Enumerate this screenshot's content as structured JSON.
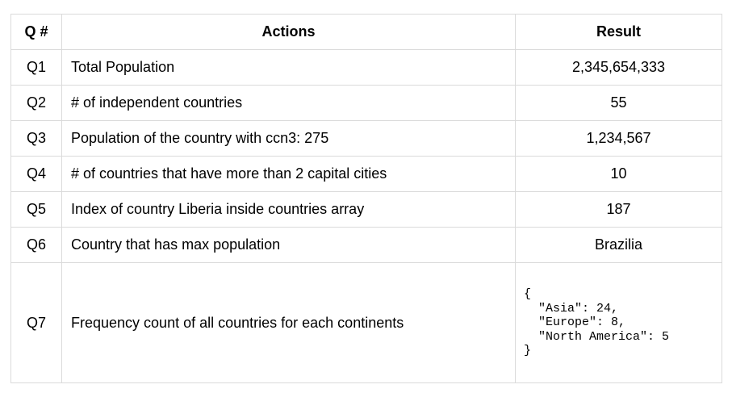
{
  "table": {
    "headers": {
      "q": "Q #",
      "actions": "Actions",
      "result": "Result"
    },
    "rows": [
      {
        "q": "Q1",
        "action": "Total Population",
        "result": "2,345,654,333"
      },
      {
        "q": "Q2",
        "action": "# of independent countries",
        "result": "55"
      },
      {
        "q": "Q3",
        "action": "Population of the country with ccn3: 275",
        "result": "1,234,567"
      },
      {
        "q": "Q4",
        "action": "# of countries that have more than 2 capital cities",
        "result": "10"
      },
      {
        "q": "Q5",
        "action": "Index of country Liberia inside countries array",
        "result": "187"
      },
      {
        "q": "Q6",
        "action": "Country that has max population",
        "result": "Brazilia"
      },
      {
        "q": "Q7",
        "action": "Frequency count of all countries for each continents",
        "result": "{\n  \"Asia\": 24,\n  \"Europe\": 8,\n  \"North America\": 5\n}"
      }
    ]
  }
}
